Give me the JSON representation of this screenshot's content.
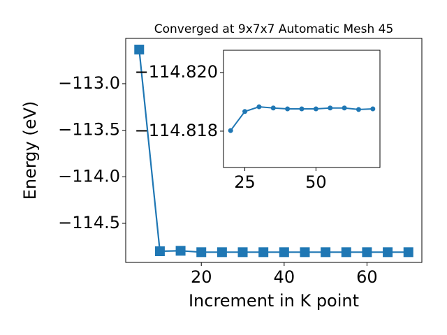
{
  "chart_data": [
    {
      "type": "line",
      "title": "Converged at 9x7x7 Automatic Mesh 45",
      "xlabel": "Increment in K point",
      "ylabel": "Energy (eV)",
      "x": [
        5,
        10,
        15,
        20,
        25,
        30,
        35,
        40,
        45,
        50,
        55,
        60,
        65,
        70
      ],
      "series": [
        {
          "color": "#1f77b4",
          "marker": "square",
          "values": [
            -112.633,
            -114.8,
            -114.795,
            -114.81,
            -114.81,
            -114.81,
            -114.81,
            -114.81,
            -114.81,
            -114.81,
            -114.81,
            -114.81,
            -114.81,
            -114.81
          ]
        }
      ],
      "xlim": [
        1.75,
        73.25
      ],
      "ylim": [
        -114.92,
        -112.513
      ],
      "xticks": [
        20,
        40,
        60
      ],
      "yticks": [
        {
          "value": -113.0,
          "label": "−113.0"
        },
        {
          "value": -113.5,
          "label": "−113.5"
        },
        {
          "value": -114.0,
          "label": "−114.0"
        },
        {
          "value": -114.5,
          "label": "−114.5"
        }
      ]
    },
    {
      "type": "line",
      "x": [
        20,
        25,
        30,
        35,
        40,
        45,
        50,
        55,
        60,
        65,
        70
      ],
      "series": [
        {
          "color": "#1f77b4",
          "marker": "circle",
          "values": [
            -114.81802,
            -114.81867,
            -114.81883,
            -114.81879,
            -114.81876,
            -114.81876,
            -114.81876,
            -114.81879,
            -114.81879,
            -114.81874,
            -114.81876
          ]
        }
      ],
      "xlim": [
        17.5,
        72.5
      ],
      "ylim": [
        -114.81676,
        -114.82076
      ],
      "xticks": [
        25,
        50
      ],
      "yticks": [
        {
          "value": -114.82,
          "label": "−114.820"
        },
        {
          "value": -114.818,
          "label": "−114.818"
        }
      ]
    }
  ]
}
